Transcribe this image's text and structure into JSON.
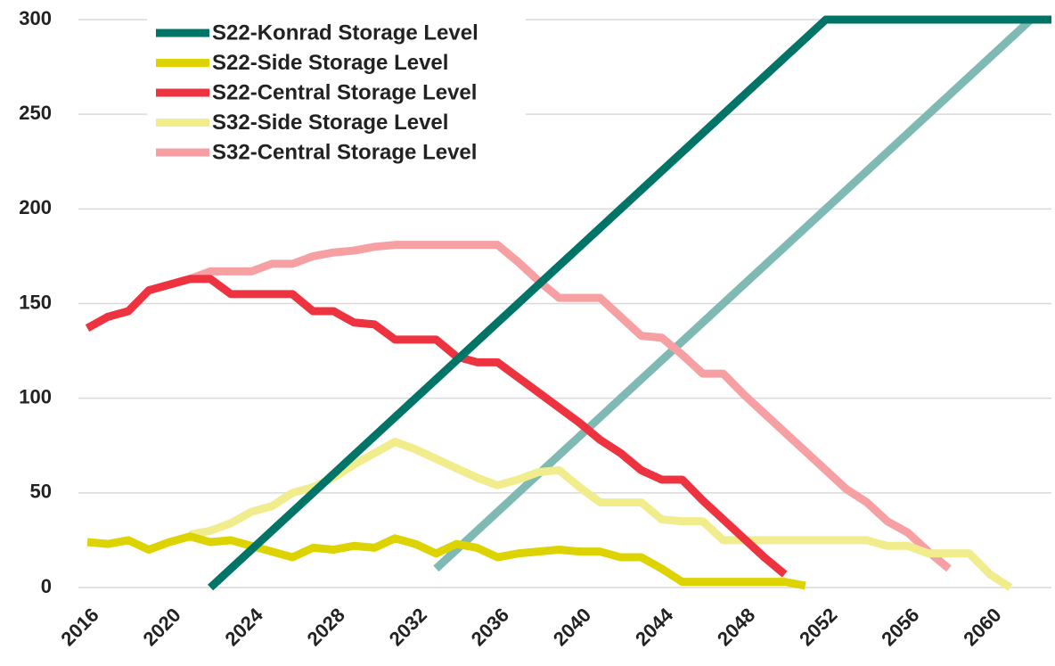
{
  "chart_data": {
    "type": "line",
    "xlim": [
      2016,
      2063
    ],
    "xticks": [
      2016,
      2020,
      2024,
      2028,
      2032,
      2036,
      2040,
      2044,
      2048,
      2052,
      2056,
      2060
    ],
    "ylim": [
      0,
      300
    ],
    "yticks": [
      0,
      50,
      100,
      150,
      200,
      250,
      300
    ],
    "grid": true,
    "legend": "top-left",
    "series": [
      {
        "name": "S22-Konrad Storage Level",
        "color": "#007567",
        "x": [
          2022,
          2052,
          2063
        ],
        "values": [
          0,
          300,
          300
        ]
      },
      {
        "name": "S22-Side Storage Level",
        "color": "#dcd300",
        "x": [
          2016,
          2017,
          2018,
          2019,
          2020,
          2021,
          2022,
          2023,
          2024,
          2025,
          2026,
          2027,
          2028,
          2029,
          2030,
          2031,
          2032,
          2033,
          2034,
          2035,
          2036,
          2037,
          2038,
          2039,
          2040,
          2041,
          2042,
          2043,
          2044,
          2045,
          2046,
          2047,
          2048,
          2049,
          2050,
          2051
        ],
        "values": [
          24,
          23,
          25,
          20,
          24,
          27,
          24,
          25,
          22,
          19,
          16,
          21,
          20,
          22,
          21,
          26,
          23,
          18,
          23,
          21,
          16,
          18,
          19,
          20,
          19,
          19,
          16,
          16,
          10,
          3,
          3,
          3,
          3,
          3,
          3,
          1
        ]
      },
      {
        "name": "S22-Central Storage Level",
        "color": "#ee3340",
        "x": [
          2016,
          2017,
          2018,
          2019,
          2020,
          2021,
          2022,
          2023,
          2024,
          2025,
          2026,
          2027,
          2028,
          2029,
          2030,
          2031,
          2032,
          2033,
          2034,
          2035,
          2036,
          2037,
          2038,
          2039,
          2040,
          2041,
          2042,
          2043,
          2044,
          2045,
          2046,
          2047,
          2048,
          2049,
          2050
        ],
        "values": [
          137,
          143,
          146,
          157,
          160,
          163,
          163,
          155,
          155,
          155,
          155,
          146,
          146,
          140,
          139,
          131,
          131,
          131,
          122,
          119,
          119,
          111,
          103,
          95,
          87,
          78,
          71,
          62,
          57,
          57,
          46,
          36,
          26,
          16,
          7
        ]
      },
      {
        "name": "S32-Side Storage Level",
        "color": "#f1ec8c",
        "x": [
          2021,
          2022,
          2023,
          2024,
          2025,
          2026,
          2027,
          2028,
          2029,
          2030,
          2031,
          2032,
          2033,
          2034,
          2035,
          2036,
          2037,
          2038,
          2039,
          2040,
          2041,
          2042,
          2043,
          2044,
          2045,
          2046,
          2047,
          2048,
          2049,
          2050,
          2051,
          2052,
          2053,
          2054,
          2055,
          2056,
          2057,
          2058,
          2059,
          2060,
          2061
        ],
        "values": [
          28,
          30,
          34,
          40,
          43,
          50,
          53,
          58,
          65,
          71,
          77,
          73,
          68,
          63,
          58,
          54,
          57,
          61,
          62,
          53,
          45,
          45,
          45,
          36,
          35,
          35,
          25,
          25,
          25,
          25,
          25,
          25,
          25,
          25,
          22,
          22,
          18,
          18,
          18,
          7,
          0
        ]
      },
      {
        "name": "S32-Central Storage Level",
        "color": "#f6a0a4",
        "x": [
          2021,
          2022,
          2023,
          2024,
          2025,
          2026,
          2027,
          2028,
          2029,
          2030,
          2031,
          2032,
          2033,
          2034,
          2035,
          2036,
          2037,
          2038,
          2039,
          2040,
          2041,
          2042,
          2043,
          2044,
          2045,
          2046,
          2047,
          2048,
          2049,
          2050,
          2051,
          2052,
          2053,
          2054,
          2055,
          2056,
          2057,
          2058
        ],
        "values": [
          163,
          167,
          167,
          167,
          171,
          171,
          175,
          177,
          178,
          180,
          181,
          181,
          181,
          181,
          181,
          181,
          172,
          162,
          153,
          153,
          153,
          143,
          133,
          132,
          123,
          113,
          113,
          102,
          92,
          82,
          72,
          62,
          52,
          45,
          35,
          29,
          19,
          10
        ]
      },
      {
        "color": "#7fb9b3",
        "x": [
          2033,
          2062
        ],
        "values": [
          10,
          300
        ]
      }
    ]
  }
}
